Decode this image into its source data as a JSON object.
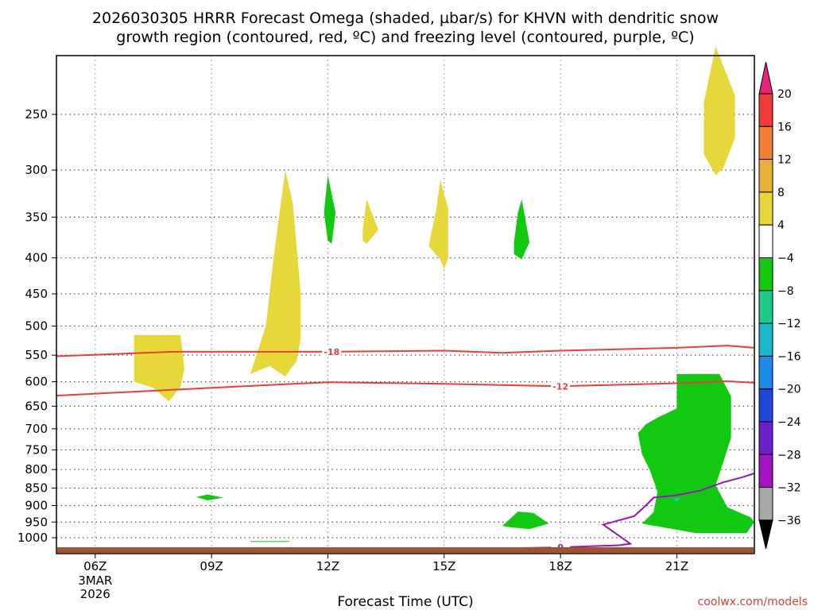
{
  "chart_data": {
    "type": "heatmap",
    "title_line1": "2026030305 HRRR Forecast Omega (shaded, µbar/s) for KHVN with dendritic snow",
    "title_line2": "growth region (contoured, red, ºC) and freezing level (contoured, purple, ºC)",
    "xlabel": "Forecast Time (UTC)",
    "credit": "coolwx.com/models",
    "x_ticks": [
      {
        "hour": 6,
        "label": "06Z",
        "sub": [
          "3MAR",
          "2026"
        ]
      },
      {
        "hour": 9,
        "label": "09Z"
      },
      {
        "hour": 12,
        "label": "12Z"
      },
      {
        "hour": 15,
        "label": "15Z"
      },
      {
        "hour": 18,
        "label": "18Z"
      },
      {
        "hour": 21,
        "label": "21Z"
      }
    ],
    "x_range_hours": [
      5,
      23
    ],
    "y_scale": "log-pressure",
    "y_ticks_hpa": [
      250,
      300,
      350,
      400,
      450,
      500,
      550,
      600,
      650,
      700,
      750,
      800,
      850,
      900,
      950,
      1000
    ],
    "colorbar": {
      "levels": [
        "20",
        "16",
        "12",
        "8",
        "4",
        "−4",
        "−8",
        "−12",
        "−16",
        "−20",
        "−24",
        "−28",
        "−32",
        "−36"
      ],
      "colors": [
        "#e6257a",
        "#ee3b3b",
        "#ee8033",
        "#e8b13a",
        "#e6d838",
        "#ffffff",
        "#11c911",
        "#1acc88",
        "#1ab9c9",
        "#1e88e8",
        "#2244d8",
        "#6a22c8",
        "#a514c2",
        "#a8a8a8",
        "#000000"
      ]
    },
    "contours": [
      {
        "name": "dendritic snow growth region",
        "label": "-18",
        "color": "#ee3b3b",
        "points": [
          [
            5,
            552
          ],
          [
            8,
            544
          ],
          [
            12,
            544
          ],
          [
            15,
            542
          ],
          [
            16.5,
            546
          ],
          [
            18,
            542
          ],
          [
            21,
            537
          ],
          [
            22.3,
            533
          ],
          [
            23,
            537
          ]
        ]
      },
      {
        "name": "dendritic snow growth region",
        "label": "-12",
        "color": "#ee3b3b",
        "points": [
          [
            5,
            628
          ],
          [
            8,
            616
          ],
          [
            12,
            601
          ],
          [
            15,
            604
          ],
          [
            18,
            609
          ],
          [
            21,
            603
          ],
          [
            22.3,
            599
          ],
          [
            23,
            602
          ]
        ]
      },
      {
        "name": "freezing level",
        "label": "0",
        "color": "#9912c0",
        "points": [
          [
            16.7,
            1035
          ],
          [
            18,
            1032
          ],
          [
            19.5,
            1025
          ],
          [
            19.8,
            1020
          ],
          [
            19.1,
            958
          ],
          [
            19.9,
            932
          ],
          [
            20.2,
            900
          ],
          [
            20.4,
            877
          ],
          [
            21,
            870
          ],
          [
            21.6,
            857
          ],
          [
            22.2,
            834
          ],
          [
            22.7,
            820
          ],
          [
            23,
            810
          ]
        ]
      }
    ],
    "shaded_regions": [
      {
        "color": "#e6d838",
        "points": [
          [
            7.0,
            515
          ],
          [
            8.2,
            515
          ],
          [
            8.3,
            575
          ],
          [
            8.2,
            610
          ],
          [
            7.9,
            640
          ],
          [
            7.5,
            612
          ],
          [
            7.0,
            600
          ]
        ]
      },
      {
        "color": "#e6d838",
        "points": [
          [
            10.0,
            585
          ],
          [
            10.4,
            500
          ],
          [
            10.6,
            400
          ],
          [
            10.9,
            300
          ],
          [
            11.1,
            335
          ],
          [
            11.3,
            450
          ],
          [
            11.3,
            520
          ],
          [
            11.2,
            560
          ],
          [
            10.9,
            590
          ],
          [
            10.5,
            570
          ]
        ]
      },
      {
        "color": "#11c911",
        "points": [
          [
            11.9,
            345
          ],
          [
            12.0,
            305
          ],
          [
            12.2,
            345
          ],
          [
            12.1,
            382
          ],
          [
            12.0,
            378
          ]
        ]
      },
      {
        "color": "#e6d838",
        "points": [
          [
            12.9,
            365
          ],
          [
            13.0,
            330
          ],
          [
            13.3,
            365
          ],
          [
            13.0,
            382
          ],
          [
            12.9,
            378
          ]
        ]
      },
      {
        "color": "#e6d838",
        "points": [
          [
            14.6,
            385
          ],
          [
            14.8,
            340
          ],
          [
            14.9,
            310
          ],
          [
            15.1,
            340
          ],
          [
            15.1,
            400
          ],
          [
            15.0,
            415
          ],
          [
            14.9,
            402
          ]
        ]
      },
      {
        "color": "#11c911",
        "points": [
          [
            16.8,
            380
          ],
          [
            16.9,
            345
          ],
          [
            17.0,
            330
          ],
          [
            17.2,
            380
          ],
          [
            17.0,
            402
          ],
          [
            16.8,
            395
          ]
        ]
      },
      {
        "color": "#e6d838",
        "points": [
          [
            21.7,
            240
          ],
          [
            22.0,
            200
          ],
          [
            22.5,
            235
          ],
          [
            22.5,
            270
          ],
          [
            22.2,
            298
          ],
          [
            22.0,
            305
          ],
          [
            21.7,
            285
          ]
        ]
      },
      {
        "color": "#11c911",
        "points": [
          [
            8.6,
            875
          ],
          [
            8.9,
            868
          ],
          [
            9.3,
            877
          ],
          [
            8.9,
            885
          ]
        ]
      },
      {
        "color": "#11c911",
        "points": [
          [
            10.0,
            1011
          ],
          [
            11.0,
            1011
          ],
          [
            11.0,
            1014
          ],
          [
            10.0,
            1014
          ]
        ]
      },
      {
        "color": "#11c911",
        "points": [
          [
            16.5,
            962
          ],
          [
            16.9,
            918
          ],
          [
            17.3,
            922
          ],
          [
            17.7,
            955
          ],
          [
            17.2,
            972
          ],
          [
            16.7,
            966
          ]
        ]
      },
      {
        "color": "#11c911",
        "points": [
          [
            20.0,
            710
          ],
          [
            20.2,
            690
          ],
          [
            20.5,
            675
          ],
          [
            21.0,
            655
          ],
          [
            21.0,
            585
          ],
          [
            22.1,
            585
          ],
          [
            22.4,
            630
          ],
          [
            22.4,
            720
          ],
          [
            22.2,
            780
          ],
          [
            22.0,
            842
          ],
          [
            22.3,
            905
          ],
          [
            22.9,
            935
          ],
          [
            23,
            950
          ],
          [
            22.8,
            985
          ],
          [
            21.5,
            985
          ],
          [
            20.1,
            955
          ],
          [
            20.4,
            920
          ],
          [
            20.5,
            860
          ],
          [
            20.3,
            800
          ],
          [
            20.1,
            760
          ]
        ]
      },
      {
        "color": "#1acc88",
        "points": [
          [
            20.9,
            878
          ],
          [
            21.1,
            878
          ],
          [
            21.0,
            892
          ]
        ]
      }
    ],
    "terrain_color": "#a0522d"
  }
}
